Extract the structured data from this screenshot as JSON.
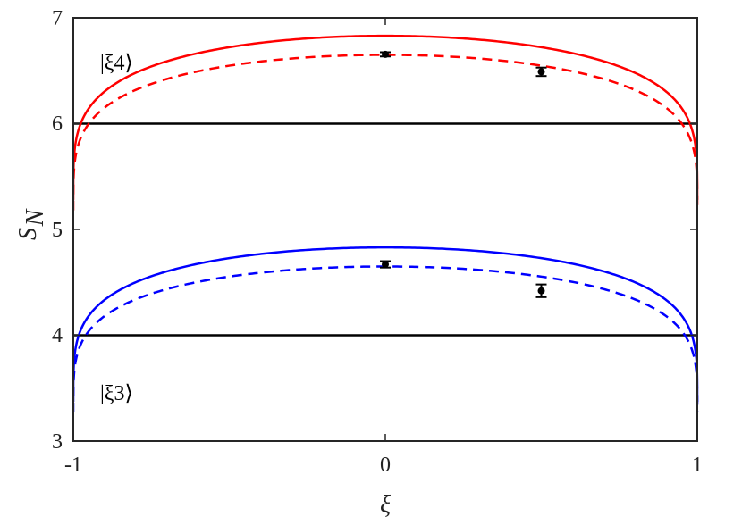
{
  "chart_data": {
    "type": "line",
    "xlabel": "ξ",
    "ylabel_main": "S",
    "ylabel_sub": "N",
    "xlim": [
      -1,
      1
    ],
    "ylim": [
      3,
      7
    ],
    "xticks": [
      "-1",
      "0",
      "1"
    ],
    "yticks": [
      "3",
      "4",
      "5",
      "6",
      "7"
    ],
    "grid": false,
    "annotations": [
      {
        "text": "|ξ4⟩",
        "series": "xi4"
      },
      {
        "text": "|ξ3⟩",
        "series": "xi3"
      }
    ],
    "series": [
      {
        "id": "xi4-solid",
        "style": "solid",
        "color": "#ff0000",
        "max": 6.83,
        "edge": 5.28
      },
      {
        "id": "xi4-dashed",
        "style": "dashed",
        "color": "#ff0000",
        "max": 6.65,
        "edge": 5.18
      },
      {
        "id": "xi3-solid",
        "style": "solid",
        "color": "#0000ff",
        "max": 4.83,
        "edge": 3.37
      },
      {
        "id": "xi3-dashed",
        "style": "dashed",
        "color": "#0000ff",
        "max": 4.65,
        "edge": 3.27
      }
    ],
    "thresholds": [
      6,
      4
    ],
    "threshold_color": "#000000",
    "points": [
      {
        "x": 0.0,
        "y": 6.655,
        "err": 0.02
      },
      {
        "x": 0.5,
        "y": 6.49,
        "err": 0.04
      },
      {
        "x": 0.0,
        "y": 4.67,
        "err": 0.03
      },
      {
        "x": 0.5,
        "y": 4.42,
        "err": 0.06
      }
    ]
  }
}
